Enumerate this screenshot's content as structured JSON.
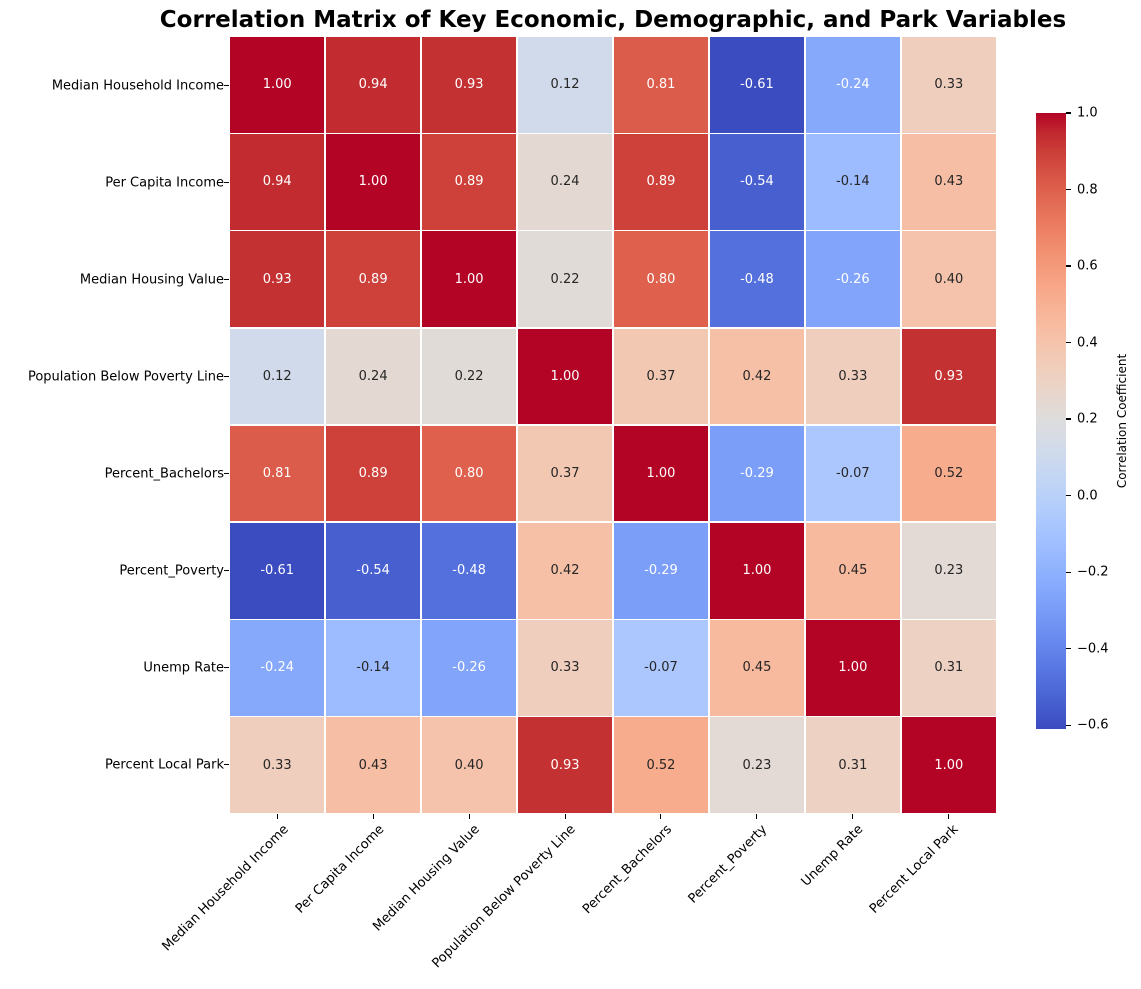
{
  "chart_data": {
    "type": "heatmap",
    "title": "Correlation Matrix of Key Economic, Demographic, and Park Variables",
    "variables": [
      "Median Household Income",
      "Per Capita Income",
      "Median Housing Value",
      "Population Below Poverty Line",
      "Percent_Bachelors",
      "Percent_Poverty",
      "Unemp Rate",
      "Percent Local Park"
    ],
    "matrix": [
      [
        1.0,
        0.94,
        0.93,
        0.12,
        0.81,
        -0.61,
        -0.24,
        0.33
      ],
      [
        0.94,
        1.0,
        0.89,
        0.24,
        0.89,
        -0.54,
        -0.14,
        0.43
      ],
      [
        0.93,
        0.89,
        1.0,
        0.22,
        0.8,
        -0.48,
        -0.26,
        0.4
      ],
      [
        0.12,
        0.24,
        0.22,
        1.0,
        0.37,
        0.42,
        0.33,
        0.93
      ],
      [
        0.81,
        0.89,
        0.8,
        0.37,
        1.0,
        -0.29,
        -0.07,
        0.52
      ],
      [
        -0.61,
        -0.54,
        -0.48,
        0.42,
        -0.29,
        1.0,
        0.45,
        0.23
      ],
      [
        -0.24,
        -0.14,
        -0.26,
        0.33,
        -0.07,
        0.45,
        1.0,
        0.31
      ],
      [
        0.33,
        0.43,
        0.4,
        0.93,
        0.52,
        0.23,
        0.31,
        1.0
      ]
    ],
    "value_decimals": 2,
    "colormap": "coolwarm",
    "vmin": -0.61,
    "vmax": 1.0,
    "annotations_on": true,
    "grid_line_color": "#ffffff",
    "annotation_dark_color": "#262626",
    "annotation_light_color": "#ffffff",
    "colormap_min_color": "#3b4cc0",
    "colormap_mid_color": "#dddddd",
    "colormap_max_color": "#b40426",
    "colorbar": {
      "label": "Correlation Coefficient",
      "ticks": [
        "1.0",
        "0.8",
        "0.6",
        "0.4",
        "0.2",
        "0.0",
        "−0.2",
        "−0.4",
        "−0.6"
      ],
      "tick_values": [
        1.0,
        0.8,
        0.6,
        0.4,
        0.2,
        0.0,
        -0.2,
        -0.4,
        -0.6
      ],
      "position": "right"
    },
    "x_tick_label_rotation": 45,
    "legend": "none"
  }
}
